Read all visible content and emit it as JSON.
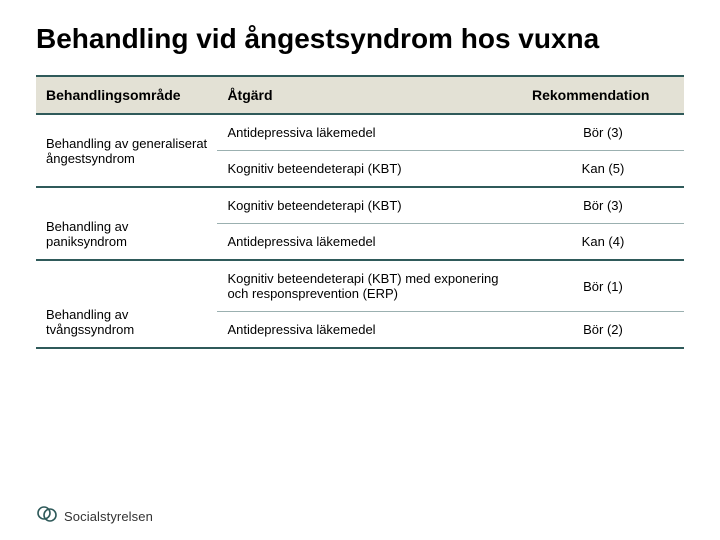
{
  "title": "Behandling vid ångestsyndrom hos vuxna",
  "table": {
    "header_bg": "#e3e1d5",
    "border_color": "#2f5a5a",
    "row_border_color": "#9bb0b0",
    "columns": [
      "Behandlingsområde",
      "Åtgärd",
      "Rekommendation"
    ],
    "rows": [
      {
        "area": "Behandling av generaliserat ångestsyndrom",
        "action": "Antidepressiva läkemedel",
        "rec": "Bör (3)",
        "rowspan": 2
      },
      {
        "area": "",
        "action": "Kognitiv beteendeterapi (KBT)",
        "rec": "Kan (5)",
        "group_end": true
      },
      {
        "area": "Behandling av paniksyndrom",
        "action": "Kognitiv beteendeterapi (KBT)",
        "rec": "Bör (3)",
        "rowspan": 2,
        "area_valign": "bottom"
      },
      {
        "area": "",
        "action": "Antidepressiva läkemedel",
        "rec": "Kan (4)",
        "group_end": true
      },
      {
        "area": "Behandling av tvångssyndrom",
        "action": "Kognitiv beteendeterapi (KBT) med exponering och responsprevention (ERP)",
        "rec": "Bör (1)",
        "rowspan": 2,
        "area_valign": "bottom"
      },
      {
        "area": "",
        "action": "Antidepressiva läkemedel",
        "rec": "Bör (2)",
        "group_end": true
      }
    ]
  },
  "footer": {
    "org": "Socialstyrelsen",
    "logo_color": "#2f5a5a"
  },
  "colors": {
    "title": "#000000",
    "text": "#111111"
  }
}
